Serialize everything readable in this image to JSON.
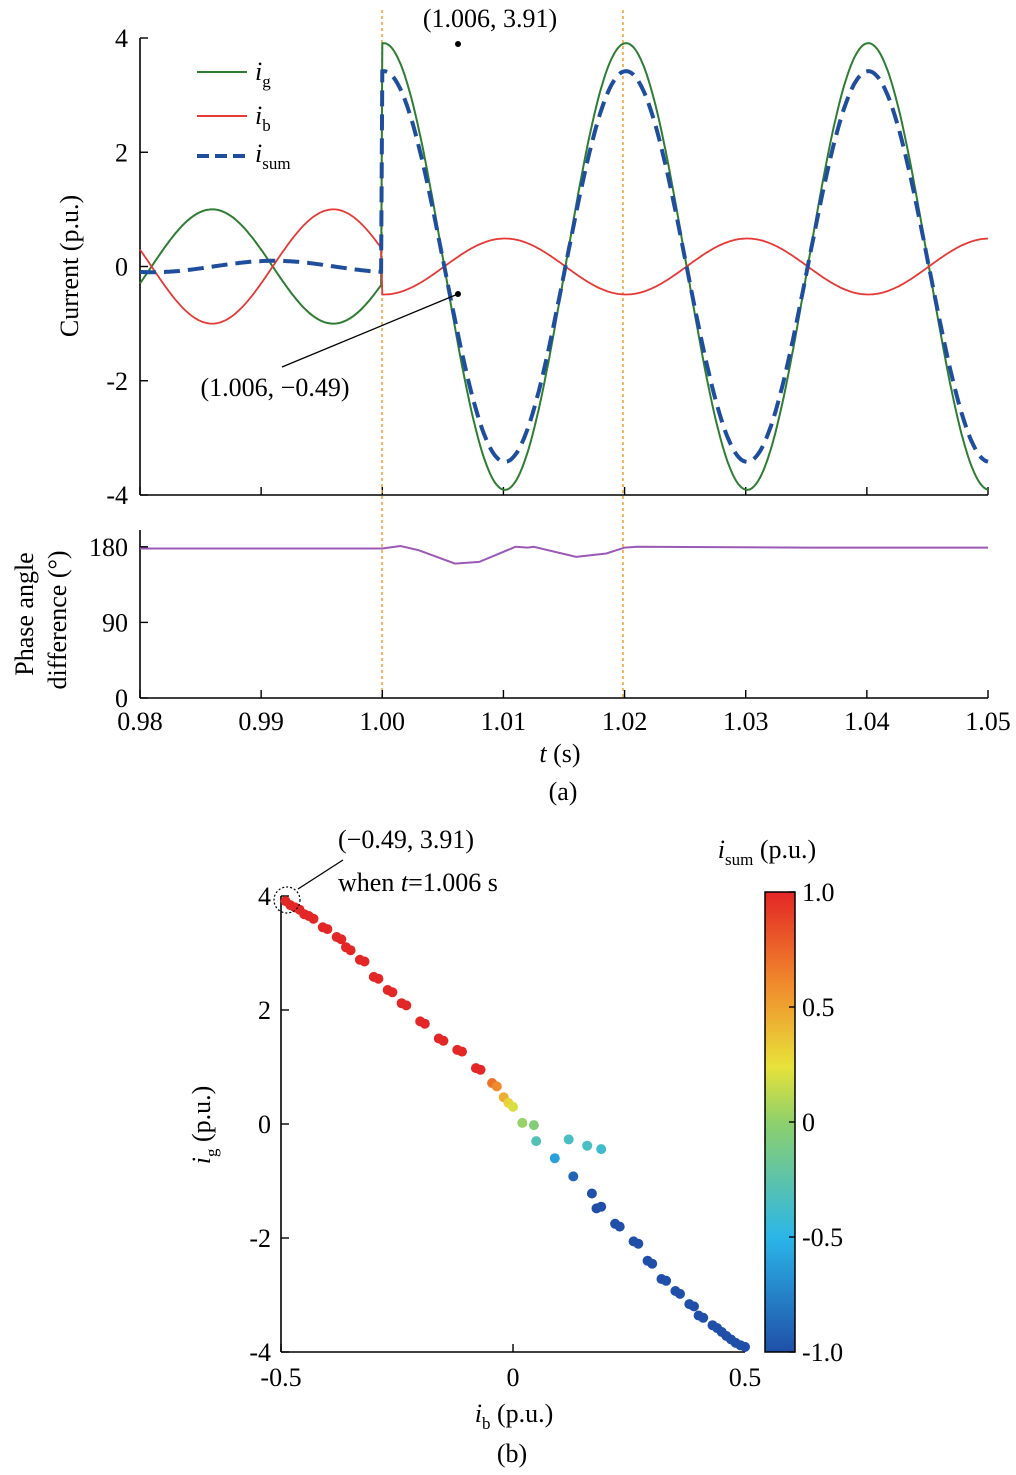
{
  "chart_data": [
    {
      "panel": "a-top",
      "type": "line",
      "x_range": [
        0.98,
        1.05
      ],
      "ylim": [
        -4,
        4
      ],
      "yticks": [
        "4",
        "2",
        "0",
        "-2",
        "-4"
      ],
      "ylabel": "Current (p.u.)",
      "legend": [
        {
          "sym": "i",
          "sub": "g",
          "color": "#2e7d32",
          "dash": false
        },
        {
          "sym": "i",
          "sub": "b",
          "color": "#e53935",
          "dash": false
        },
        {
          "sym": "i",
          "sub": "sum",
          "color": "#1f4e9c",
          "dash": true
        }
      ],
      "legend_position": "top-left",
      "fault_time": 1.0,
      "recovery_time": 1.02,
      "series": [
        {
          "name": "ig",
          "pre_amplitude": 1.0,
          "post_amplitude": 3.91,
          "color": "#2e7d32"
        },
        {
          "name": "ib",
          "pre_amplitude": 1.0,
          "post_amplitude": 0.49,
          "color": "#e53935"
        },
        {
          "name": "isum",
          "pre_amplitude": 0.1,
          "post_amplitude": 3.42,
          "color": "#1f4e9c"
        }
      ],
      "annotations": [
        {
          "label": "(1.006, 3.91)",
          "x": 1.006,
          "y": 3.91
        },
        {
          "label": "(1.006, −0.49)",
          "x": 1.006,
          "y": -0.49
        }
      ]
    },
    {
      "panel": "a-bottom",
      "type": "line",
      "xticks": [
        "0.98",
        "0.99",
        "1.00",
        "1.01",
        "1.02",
        "1.03",
        "1.04",
        "1.05"
      ],
      "ylim": [
        0,
        200
      ],
      "yticks": [
        "180",
        "90",
        "0"
      ],
      "ylabel_line1": "Phase angle",
      "ylabel_line2": "difference (°)",
      "xlabel_sym": "t",
      "xlabel_unit": " (s)",
      "caption": "(a)",
      "series": [
        {
          "name": "phase",
          "color": "#9b59b6",
          "points": [
            [
              0.98,
              178
            ],
            [
              0.998,
              178
            ],
            [
              1.0,
              178
            ],
            [
              1.0015,
              181
            ],
            [
              1.003,
              176
            ],
            [
              1.006,
              160
            ],
            [
              1.008,
              162
            ],
            [
              1.011,
              180
            ],
            [
              1.012,
              179
            ],
            [
              1.0125,
              180
            ],
            [
              1.016,
              168
            ],
            [
              1.0185,
              172
            ],
            [
              1.02,
              179
            ],
            [
              1.021,
              180
            ],
            [
              1.035,
              179
            ],
            [
              1.05,
              179
            ]
          ]
        }
      ]
    },
    {
      "panel": "b",
      "type": "scatter",
      "xlim": [
        -0.5,
        0.5
      ],
      "ylim": [
        -4,
        4
      ],
      "xticks": [
        "-0.5",
        "0",
        "0.5"
      ],
      "yticks": [
        "4",
        "2",
        "0",
        "-2",
        "-4"
      ],
      "xlabel_sym": "i",
      "xlabel_sub": "b",
      "xlabel_unit": " (p.u.)",
      "ylabel_sym": "i",
      "ylabel_sub": "g",
      "ylabel_unit": " (p.u.)",
      "colorbar_title_sym": "i",
      "colorbar_title_sub": "sum",
      "colorbar_title_unit": " (p.u.)",
      "colorbar_ticks": [
        "1.0",
        "0.5",
        "0",
        "-0.5",
        "-1.0"
      ],
      "colorbar_range": [
        -1.0,
        1.0
      ],
      "annotation_line1": "(−0.49, 3.91)",
      "annotation_line2_a": "when ",
      "annotation_line2_t": "t",
      "annotation_line2_b": "=1.006 s",
      "caption": "(b)",
      "points": [
        [
          -0.49,
          3.91,
          1
        ],
        [
          -0.48,
          3.84,
          1
        ],
        [
          -0.47,
          3.8,
          1
        ],
        [
          -0.46,
          3.76,
          1
        ],
        [
          -0.45,
          3.68,
          1
        ],
        [
          -0.44,
          3.65,
          1
        ],
        [
          -0.43,
          3.6,
          1
        ],
        [
          -0.41,
          3.45,
          1
        ],
        [
          -0.4,
          3.42,
          1
        ],
        [
          -0.38,
          3.28,
          1
        ],
        [
          -0.37,
          3.24,
          1
        ],
        [
          -0.36,
          3.1,
          1
        ],
        [
          -0.35,
          3.05,
          1
        ],
        [
          -0.33,
          2.88,
          1
        ],
        [
          -0.32,
          2.85,
          1
        ],
        [
          -0.3,
          2.58,
          1
        ],
        [
          -0.29,
          2.55,
          1
        ],
        [
          -0.27,
          2.35,
          1
        ],
        [
          -0.26,
          2.31,
          1
        ],
        [
          -0.24,
          2.12,
          1
        ],
        [
          -0.23,
          2.08,
          1
        ],
        [
          -0.2,
          1.8,
          1
        ],
        [
          -0.19,
          1.76,
          1
        ],
        [
          -0.16,
          1.5,
          1
        ],
        [
          -0.15,
          1.46,
          1
        ],
        [
          -0.12,
          1.3,
          1
        ],
        [
          -0.11,
          1.27,
          1
        ],
        [
          -0.08,
          0.98,
          1
        ],
        [
          -0.07,
          0.95,
          1
        ],
        [
          -0.045,
          0.72,
          0.7
        ],
        [
          -0.035,
          0.66,
          0.6
        ],
        [
          -0.02,
          0.47,
          0.45
        ],
        [
          -0.01,
          0.37,
          0.3
        ],
        [
          0.0,
          0.3,
          0.2
        ],
        [
          0.02,
          0.02,
          0.02
        ],
        [
          0.045,
          -0.02,
          -0.05
        ],
        [
          0.05,
          -0.3,
          -0.3
        ],
        [
          0.12,
          -0.27,
          -0.35
        ],
        [
          0.16,
          -0.38,
          -0.35
        ],
        [
          0.19,
          -0.44,
          -0.4
        ],
        [
          0.09,
          -0.6,
          -0.6
        ],
        [
          0.13,
          -0.92,
          -0.9
        ],
        [
          0.17,
          -1.22,
          -1
        ],
        [
          0.18,
          -1.48,
          -1
        ],
        [
          0.19,
          -1.45,
          -1
        ],
        [
          0.22,
          -1.75,
          -1
        ],
        [
          0.23,
          -1.8,
          -1
        ],
        [
          0.26,
          -2.06,
          -1
        ],
        [
          0.27,
          -2.1,
          -1
        ],
        [
          0.29,
          -2.4,
          -1
        ],
        [
          0.3,
          -2.45,
          -1
        ],
        [
          0.32,
          -2.72,
          -1
        ],
        [
          0.33,
          -2.75,
          -1
        ],
        [
          0.35,
          -2.93,
          -1
        ],
        [
          0.36,
          -2.98,
          -1
        ],
        [
          0.38,
          -3.16,
          -1
        ],
        [
          0.39,
          -3.2,
          -1
        ],
        [
          0.4,
          -3.36,
          -1
        ],
        [
          0.41,
          -3.4,
          -1
        ],
        [
          0.43,
          -3.53,
          -1
        ],
        [
          0.44,
          -3.58,
          -1
        ],
        [
          0.45,
          -3.65,
          -1
        ],
        [
          0.46,
          -3.72,
          -1
        ],
        [
          0.47,
          -3.78,
          -1
        ],
        [
          0.48,
          -3.84,
          -1
        ],
        [
          0.49,
          -3.88,
          -1
        ],
        [
          0.5,
          -3.91,
          -1
        ]
      ]
    }
  ]
}
